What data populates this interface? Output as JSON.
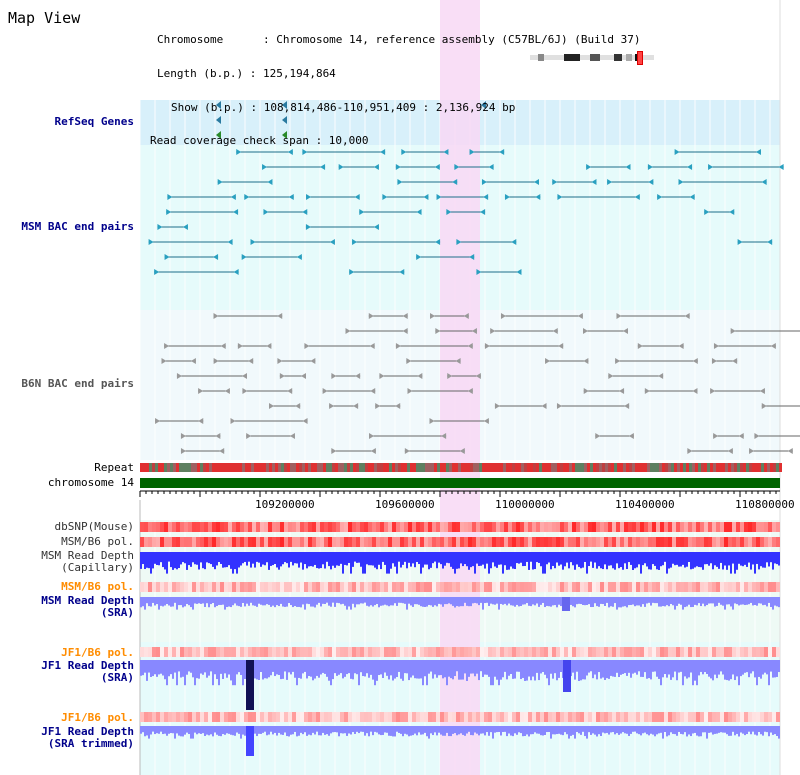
{
  "view_title": "Map View",
  "info": {
    "chromosome_line": "Chromosome      : Chromosome 14, reference assembly (C57BL/6J) (Build 37)",
    "length_line": "Length (b.p.) : 125,194,864",
    "show_line": "Show (b.p.) : 108,814,486-110,951,409 : 2,136,924 bp",
    "span_line": "Read coverage check span : 10,000"
  },
  "tracks": {
    "refseq": "RefSeq Genes",
    "msm_bac": "MSM BAC end pairs",
    "b6n_bac": "B6N BAC end pairs",
    "repeat": "Repeat",
    "chromosome": "chromosome 14",
    "dbsnp": "dbSNP(Mouse)",
    "msm_b6_pol_1": "MSM/B6 pol.",
    "msm_read_depth_cap_1": "MSM Read Depth",
    "msm_read_depth_cap_2": "(Capillary)",
    "msm_b6_pol_2": "MSM/B6 pol.",
    "msm_read_depth_sra_1": "MSM Read Depth",
    "msm_read_depth_sra_2": "(SRA)",
    "jf1_b6_pol_1": "JF1/B6 pol.",
    "jf1_read_depth_sra_1": "JF1 Read Depth",
    "jf1_read_depth_sra_2": "(SRA)",
    "jf1_b6_pol_2": "JF1/B6 pol.",
    "jf1_read_depth_trim_1": "JF1 Read Depth",
    "jf1_read_depth_trim_2": "(SRA trimmed)"
  },
  "axis": {
    "ticks": [
      "109200000",
      "109600000",
      "110000000",
      "110400000",
      "110800000"
    ]
  },
  "colors": {
    "label_blue": "#00008b",
    "label_orange": "#ff8c00",
    "refseq_bg": "#d8f0fa",
    "track_bg": "#e6fbfb",
    "highlight": "#f8d8f4",
    "chrom_green": "#006400",
    "depth_blue": "#3333ff",
    "depth_light": "#8888ff"
  }
}
